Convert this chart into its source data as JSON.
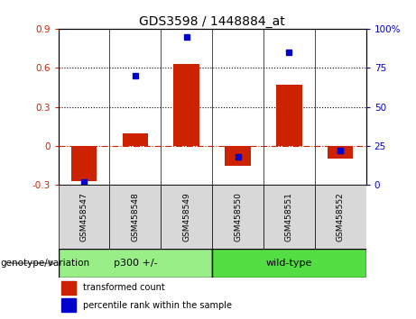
{
  "title": "GDS3598 / 1448884_at",
  "samples": [
    "GSM458547",
    "GSM458548",
    "GSM458549",
    "GSM458550",
    "GSM458551",
    "GSM458552"
  ],
  "red_values": [
    -0.27,
    0.1,
    0.63,
    -0.15,
    0.47,
    -0.1
  ],
  "blue_values": [
    2,
    70,
    95,
    18,
    85,
    22
  ],
  "ylim_left": [
    -0.3,
    0.9
  ],
  "ylim_right": [
    0,
    100
  ],
  "yticks_left": [
    -0.3,
    0.0,
    0.3,
    0.6,
    0.9
  ],
  "yticks_right": [
    0,
    25,
    50,
    75,
    100
  ],
  "ytick_labels_right": [
    "0",
    "25",
    "50",
    "75",
    "100%"
  ],
  "ytick_labels_left": [
    "-0.3",
    "0",
    "0.3",
    "0.6",
    "0.9"
  ],
  "hlines": [
    0.3,
    0.6
  ],
  "red_color": "#cc2200",
  "blue_color": "#0000cc",
  "bar_width": 0.5,
  "groups": [
    {
      "label": "p300 +/-",
      "indices": [
        0,
        1,
        2
      ],
      "color": "#99ee88"
    },
    {
      "label": "wild-type",
      "indices": [
        3,
        4,
        5
      ],
      "color": "#55dd44"
    }
  ],
  "legend_items": [
    {
      "label": "transformed count",
      "color": "#cc2200"
    },
    {
      "label": "percentile rank within the sample",
      "color": "#0000cc"
    }
  ],
  "genotype_label": "genotype/variation",
  "sample_bg_color": "#d8d8d8",
  "plot_bg": "#ffffff",
  "title_fontsize": 10,
  "tick_fontsize": 7.5,
  "sample_label_fontsize": 6.5,
  "group_label_fontsize": 8,
  "legend_fontsize": 7,
  "genotype_fontsize": 7.5
}
